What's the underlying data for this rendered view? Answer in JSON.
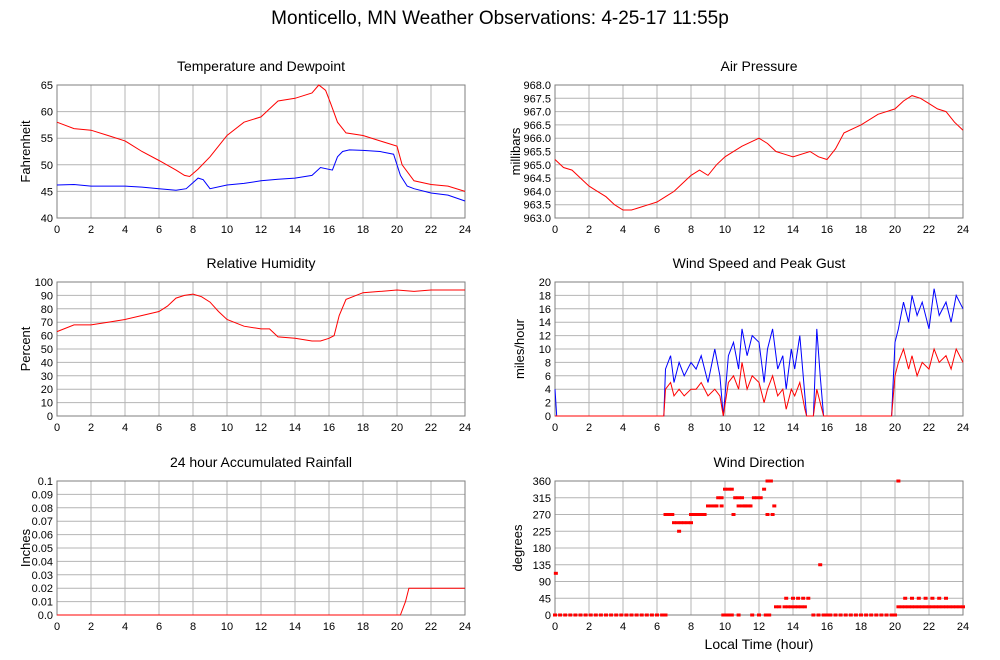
{
  "page": {
    "title": "Monticello, MN Weather Observations: 4-25-17 11:55p"
  },
  "colors": {
    "series_red": "#ff0000",
    "series_blue": "#0000ff",
    "grid": "#b4b4b4",
    "frame": "#7f7f7f"
  },
  "chart_data": [
    {
      "id": "temp",
      "type": "line",
      "title": "Temperature and Dewpoint",
      "xlabel": "",
      "ylabel": "Fahrenheit",
      "xlim": [
        0,
        24
      ],
      "ylim": [
        40,
        65
      ],
      "xticks": [
        0,
        2,
        4,
        6,
        8,
        10,
        12,
        14,
        16,
        18,
        20,
        22,
        24
      ],
      "yticks": [
        40,
        45,
        50,
        55,
        60,
        65
      ],
      "series": [
        {
          "color": "#ff0000",
          "x": [
            0,
            1,
            2,
            3,
            4,
            5,
            6,
            7,
            7.5,
            7.8,
            8.3,
            9,
            10,
            11,
            12,
            12.5,
            13,
            14,
            15,
            15.4,
            15.8,
            16.1,
            16.5,
            17,
            18,
            19,
            19.5,
            20,
            20.3,
            21,
            22,
            23,
            24
          ],
          "y": [
            58,
            56.8,
            56.5,
            55.5,
            54.5,
            52.5,
            50.8,
            49,
            48,
            47.8,
            49.2,
            51.5,
            55.5,
            58,
            59,
            60.5,
            62,
            62.5,
            63.5,
            65,
            64,
            61.5,
            58,
            56,
            55.5,
            54.5,
            54,
            53.5,
            50,
            47,
            46.3,
            46,
            45
          ]
        },
        {
          "color": "#0000ff",
          "x": [
            0,
            1,
            2,
            3,
            4,
            5,
            6,
            7,
            7.6,
            8.3,
            8.6,
            9,
            10,
            11,
            12,
            13,
            14,
            15,
            15.5,
            16.2,
            16.5,
            16.8,
            17.2,
            18,
            19,
            19.8,
            20.2,
            20.6,
            21,
            22,
            23,
            24
          ],
          "y": [
            46.2,
            46.3,
            46,
            46,
            46,
            45.8,
            45.5,
            45.2,
            45.5,
            47.5,
            47.2,
            45.5,
            46.2,
            46.5,
            47,
            47.3,
            47.5,
            48,
            49.5,
            49,
            51.5,
            52.5,
            52.8,
            52.7,
            52.5,
            52,
            48,
            46,
            45.5,
            44.7,
            44.3,
            43.2
          ]
        }
      ]
    },
    {
      "id": "pressure",
      "type": "line",
      "title": "Air Pressure",
      "xlabel": "",
      "ylabel": "millibars",
      "xlim": [
        0,
        24
      ],
      "ylim": [
        963.0,
        968.0
      ],
      "xticks": [
        0,
        2,
        4,
        6,
        8,
        10,
        12,
        14,
        16,
        18,
        20,
        22,
        24
      ],
      "yticks": [
        963.0,
        963.5,
        964.0,
        964.5,
        965.0,
        965.5,
        966.0,
        966.5,
        967.0,
        967.5,
        968.0
      ],
      "series": [
        {
          "color": "#ff0000",
          "x": [
            0,
            0.5,
            1,
            1.5,
            2,
            2.5,
            3,
            3.5,
            4,
            4.5,
            5,
            5.5,
            6,
            6.5,
            7,
            7.5,
            8,
            8.5,
            9,
            9.5,
            10,
            11,
            12,
            12.5,
            13,
            13.5,
            14,
            15,
            15.5,
            16,
            16.5,
            17,
            18,
            19,
            20,
            20.5,
            21,
            21.5,
            22,
            22.5,
            23,
            23.5,
            24
          ],
          "y": [
            965.2,
            964.9,
            964.8,
            964.5,
            964.2,
            964.0,
            963.8,
            963.5,
            963.3,
            963.3,
            963.4,
            963.5,
            963.6,
            963.8,
            964.0,
            964.3,
            964.6,
            964.8,
            964.6,
            965.0,
            965.3,
            965.7,
            966.0,
            965.8,
            965.5,
            965.4,
            965.3,
            965.5,
            965.3,
            965.2,
            965.6,
            966.2,
            966.5,
            966.9,
            967.1,
            967.4,
            967.6,
            967.5,
            967.3,
            967.1,
            967.0,
            966.6,
            966.3
          ]
        }
      ]
    },
    {
      "id": "humidity",
      "type": "line",
      "title": "Relative Humidity",
      "xlabel": "",
      "ylabel": "Percent",
      "xlim": [
        0,
        24
      ],
      "ylim": [
        0,
        100
      ],
      "xticks": [
        0,
        2,
        4,
        6,
        8,
        10,
        12,
        14,
        16,
        18,
        20,
        22,
        24
      ],
      "yticks": [
        0,
        10,
        20,
        30,
        40,
        50,
        60,
        70,
        80,
        90,
        100
      ],
      "series": [
        {
          "color": "#ff0000",
          "x": [
            0,
            1,
            2,
            3,
            4,
            5,
            6,
            6.5,
            7,
            7.5,
            8,
            8.5,
            9,
            9.5,
            10,
            11,
            12,
            12.5,
            13,
            14,
            15,
            15.5,
            16,
            16.3,
            16.6,
            17,
            18,
            19,
            20,
            21,
            22,
            23,
            24
          ],
          "y": [
            63,
            68,
            68,
            70,
            72,
            75,
            78,
            82,
            88,
            90,
            91,
            89,
            85,
            78,
            72,
            67,
            65,
            65,
            59,
            58,
            56,
            56,
            58,
            60,
            75,
            87,
            92,
            93,
            94,
            93,
            94,
            94,
            94
          ]
        }
      ]
    },
    {
      "id": "wind",
      "type": "line",
      "title": "Wind Speed and Peak Gust",
      "xlabel": "",
      "ylabel": "miles/hour",
      "xlim": [
        0,
        24
      ],
      "ylim": [
        0,
        20
      ],
      "xticks": [
        0,
        2,
        4,
        6,
        8,
        10,
        12,
        14,
        16,
        18,
        20,
        22,
        24
      ],
      "yticks": [
        0,
        2,
        4,
        6,
        8,
        10,
        12,
        14,
        16,
        18,
        20
      ],
      "series": [
        {
          "color": "#0000ff",
          "x": [
            0,
            0.1,
            0.2,
            6.4,
            6.5,
            6.8,
            7,
            7.3,
            7.6,
            8,
            8.3,
            8.6,
            9,
            9.4,
            9.7,
            9.9,
            10.2,
            10.5,
            10.8,
            11,
            11.3,
            11.6,
            12,
            12.3,
            12.5,
            12.8,
            13.1,
            13.4,
            13.6,
            13.9,
            14.1,
            14.4,
            14.7,
            14.8,
            15.0,
            15.2,
            15.4,
            15.6,
            15.8,
            19.8,
            20,
            20.2,
            20.5,
            20.8,
            21,
            21.3,
            21.6,
            22,
            22.3,
            22.6,
            23,
            23.3,
            23.6,
            24
          ],
          "y": [
            4,
            0,
            0,
            0,
            7,
            9,
            5,
            8,
            6,
            8,
            7,
            9,
            5,
            10,
            6,
            0,
            9,
            11,
            7,
            13,
            9,
            12,
            11,
            5,
            10,
            13,
            7,
            9,
            4,
            10,
            7,
            12,
            3,
            0,
            0,
            0,
            13,
            6,
            0,
            0,
            11,
            13,
            17,
            14,
            18,
            15,
            17,
            13,
            19,
            15,
            17,
            14,
            18,
            16
          ]
        },
        {
          "color": "#ff0000",
          "x": [
            0,
            0.1,
            0.2,
            6.4,
            6.5,
            6.8,
            7,
            7.3,
            7.6,
            8,
            8.3,
            8.6,
            9,
            9.4,
            9.7,
            9.9,
            10.2,
            10.5,
            10.8,
            11,
            11.3,
            11.6,
            12,
            12.3,
            12.5,
            12.8,
            13.1,
            13.4,
            13.6,
            13.9,
            14.1,
            14.4,
            14.7,
            14.8,
            15.0,
            15.2,
            15.4,
            15.6,
            15.8,
            19.8,
            20,
            20.2,
            20.5,
            20.8,
            21,
            21.3,
            21.6,
            22,
            22.3,
            22.6,
            23,
            23.3,
            23.6,
            24
          ],
          "y": [
            0,
            0,
            0,
            0,
            4,
            5,
            3,
            4,
            3,
            4,
            4,
            5,
            3,
            4,
            3,
            0,
            5,
            6,
            4,
            8,
            4,
            6,
            5,
            2,
            4,
            6,
            3,
            4,
            1,
            4,
            3,
            5,
            1,
            0,
            0,
            0,
            4,
            2,
            0,
            0,
            6,
            8,
            10,
            7,
            9,
            6,
            8,
            7,
            10,
            8,
            9,
            7,
            10,
            8
          ]
        }
      ]
    },
    {
      "id": "rain",
      "type": "line",
      "title": "24 hour Accumulated Rainfall",
      "xlabel": "",
      "ylabel": "Inches",
      "xlim": [
        0,
        24
      ],
      "ylim": [
        0,
        0.1
      ],
      "xticks": [
        0,
        2,
        4,
        6,
        8,
        10,
        12,
        14,
        16,
        18,
        20,
        22,
        24
      ],
      "yticks": [
        0.0,
        0.01,
        0.02,
        0.03,
        0.04,
        0.05,
        0.06,
        0.07,
        0.08,
        0.09,
        0.1
      ],
      "series": [
        {
          "color": "#ff0000",
          "x": [
            0,
            20.2,
            20.5,
            20.7,
            24
          ],
          "y": [
            0,
            0,
            0.01,
            0.02,
            0.02
          ]
        }
      ]
    },
    {
      "id": "direction",
      "type": "scatter",
      "title": "Wind Direction",
      "xlabel": "Local Time (hour)",
      "ylabel": "degrees",
      "xlim": [
        0,
        24
      ],
      "ylim": [
        0,
        360
      ],
      "xticks": [
        0,
        2,
        4,
        6,
        8,
        10,
        12,
        14,
        16,
        18,
        20,
        22,
        24
      ],
      "yticks": [
        0,
        45,
        90,
        135,
        180,
        225,
        270,
        315,
        360
      ],
      "series": [
        {
          "color": "#ff0000",
          "x": [
            0,
            0.3,
            0.6,
            0.9,
            1.2,
            1.5,
            1.8,
            2.1,
            2.4,
            2.7,
            3.0,
            3.3,
            3.6,
            3.9,
            4.2,
            4.5,
            4.8,
            5.1,
            5.4,
            5.7,
            6.0,
            6.3,
            6.5,
            0.05,
            6.5,
            6.7,
            6.9,
            7.0,
            7.2,
            7.4,
            7.6,
            7.8,
            8.0,
            7.3,
            8.0,
            8.2,
            8.4,
            8.6,
            8.8,
            9.0,
            9.2,
            9.4,
            9.6,
            9.8,
            9.5,
            9.8,
            10.0,
            10.2,
            10.4,
            10.6,
            10.8,
            11.0,
            11.2,
            11.4,
            10.5,
            10.8,
            11.0,
            11.2,
            11.5,
            11.7,
            11.9,
            12.1,
            12.3,
            12.5,
            12.7,
            12.9,
            12.5,
            12.8,
            9.9,
            10.0,
            10.2,
            10.4,
            10.8,
            11.6,
            12.0,
            12.4,
            12.6,
            13.0,
            13.2,
            13.5,
            13.7,
            13.9,
            14.1,
            14.3,
            14.5,
            14.7,
            13.6,
            14.0,
            14.3,
            14.6,
            14.9,
            15.2,
            15.5,
            15.6,
            15.8,
            16.0,
            16.2,
            16.5,
            16.8,
            17.1,
            17.4,
            17.7,
            18.0,
            18.3,
            18.6,
            18.9,
            19.2,
            19.5,
            19.8,
            20.0,
            20.2,
            20.4,
            20.6,
            20.8,
            21.0,
            21.2,
            21.4,
            21.6,
            21.8,
            22.0,
            22.2,
            22.4,
            22.6,
            22.8,
            23.0,
            23.2,
            23.4,
            23.6,
            23.8,
            24.0,
            20.6,
            21.0,
            21.4,
            21.8,
            22.2,
            22.6,
            23.0,
            20.2
          ],
          "y": [
            0,
            0,
            0,
            0,
            0,
            0,
            0,
            0,
            0,
            0,
            0,
            0,
            0,
            0,
            0,
            0,
            0,
            0,
            0,
            0,
            0,
            0,
            0,
            112,
            270,
            270,
            270,
            248,
            248,
            248,
            248,
            248,
            248,
            225,
            270,
            270,
            270,
            270,
            270,
            293,
            293,
            293,
            315,
            315,
            293,
            293,
            338,
            338,
            338,
            315,
            315,
            315,
            293,
            293,
            270,
            293,
            293,
            293,
            293,
            315,
            315,
            315,
            338,
            360,
            360,
            293,
            270,
            270,
            0,
            0,
            0,
            0,
            0,
            0,
            0,
            0,
            0,
            22,
            22,
            22,
            22,
            22,
            22,
            22,
            22,
            22,
            45,
            45,
            45,
            45,
            45,
            0,
            0,
            135,
            0,
            0,
            0,
            0,
            0,
            0,
            0,
            0,
            0,
            0,
            0,
            0,
            0,
            0,
            0,
            0,
            22,
            22,
            22,
            22,
            22,
            22,
            22,
            22,
            22,
            22,
            22,
            22,
            22,
            22,
            22,
            22,
            22,
            22,
            22,
            22,
            45,
            45,
            45,
            45,
            45,
            45,
            45,
            360
          ]
        }
      ]
    }
  ]
}
